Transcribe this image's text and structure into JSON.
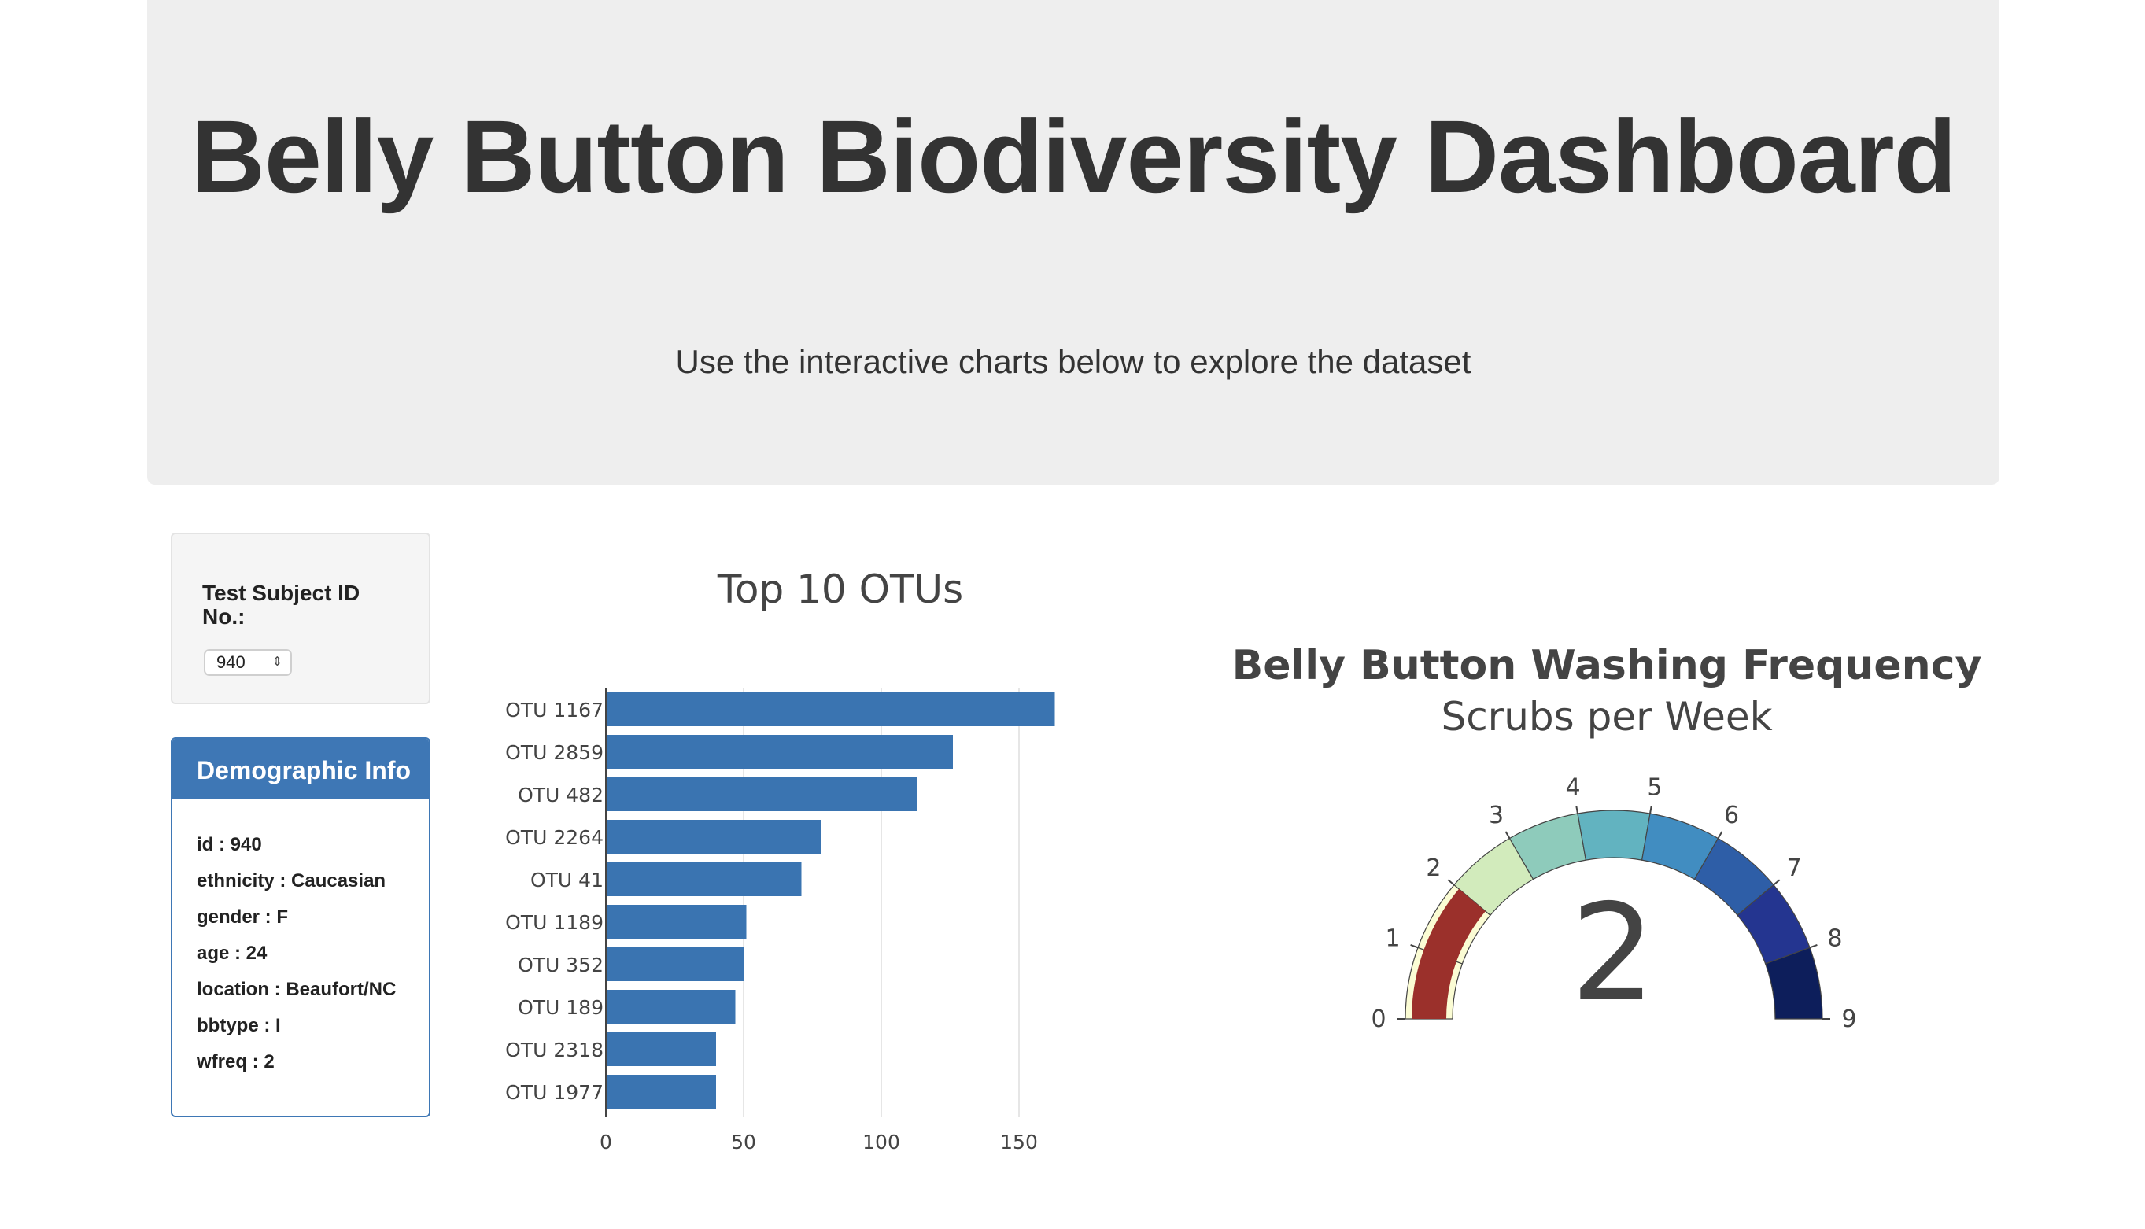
{
  "header": {
    "title": "Belly Button Biodiversity Dashboard",
    "subtitle": "Use the interactive charts below to explore the dataset"
  },
  "selector": {
    "label": "Test Subject ID No.:",
    "value": "940"
  },
  "demographics": {
    "heading": "Demographic Info",
    "rows": [
      "id : 940",
      "ethnicity : Caucasian",
      "gender : F",
      "age : 24",
      "location : Beaufort/NC",
      "bbtype : I",
      "wfreq : 2"
    ]
  },
  "chart_data": [
    {
      "type": "bar",
      "orientation": "horizontal",
      "title": "Top 10 OTUs",
      "categories": [
        "OTU 1167",
        "OTU 2859",
        "OTU 482",
        "OTU 2264",
        "OTU 41",
        "OTU 1189",
        "OTU 352",
        "OTU 189",
        "OTU 2318",
        "OTU 1977"
      ],
      "values": [
        163,
        126,
        113,
        78,
        71,
        51,
        50,
        47,
        40,
        40
      ],
      "xticks": [
        0,
        50,
        100,
        150
      ],
      "xlim": [
        0,
        165
      ],
      "grid": true,
      "color": "#3a74b1"
    },
    {
      "type": "gauge",
      "title": "Belly Button Washing Frequency",
      "subtitle": "Scrubs per Week",
      "value": 2,
      "range": [
        0,
        9
      ],
      "ticks": [
        0,
        1,
        2,
        3,
        4,
        5,
        6,
        7,
        8,
        9
      ],
      "band_colors": [
        "#fbfcd4",
        "#fbfcd4",
        "#d2ebbc",
        "#8ecbbb",
        "#62b3c0",
        "#418dc1",
        "#2e5ea7",
        "#243590",
        "#0d1e5b"
      ],
      "bar_color": "#9b302b"
    }
  ]
}
